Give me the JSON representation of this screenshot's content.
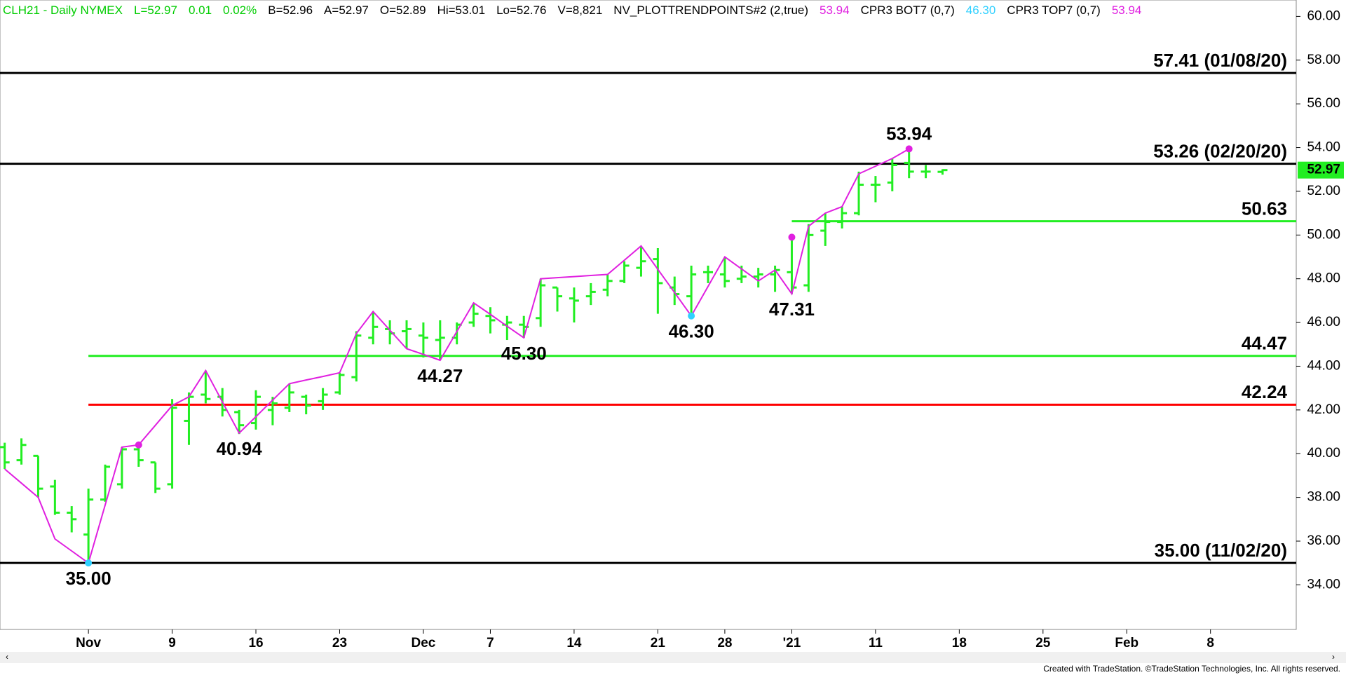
{
  "chart_data": {
    "type": "ohlc",
    "header": [
      {
        "text": "CLH21 - Daily  NYMEX",
        "color": "#00cc00"
      },
      {
        "text": "L=52.97",
        "color": "#00cc00"
      },
      {
        "text": "0.01",
        "color": "#00cc00"
      },
      {
        "text": "0.02%",
        "color": "#00cc00"
      },
      {
        "text": "B=52.96",
        "color": "#000000"
      },
      {
        "text": "A=52.97",
        "color": "#000000"
      },
      {
        "text": "O=52.89",
        "color": "#000000"
      },
      {
        "text": "Hi=53.01",
        "color": "#000000"
      },
      {
        "text": "Lo=52.76",
        "color": "#000000"
      },
      {
        "text": "V=8,821",
        "color": "#000000"
      },
      {
        "text": "NV_PLOTTRENDPOINTS#2 (2,true)",
        "color": "#000000"
      },
      {
        "text": "53.94",
        "color": "#e020e0"
      },
      {
        "text": "CPR3 BOT7 (0,7)",
        "color": "#000000"
      },
      {
        "text": "46.30",
        "color": "#30d0ff"
      },
      {
        "text": "CPR3 TOP7 (0,7)",
        "color": "#000000"
      },
      {
        "text": "53.94",
        "color": "#e020e0"
      }
    ],
    "footer": "Created with TradeStation. ©TradeStation Technologies, Inc. All rights reserved.",
    "categories": [
      null,
      null,
      null,
      null,
      null,
      "Nov",
      null,
      null,
      null,
      null,
      "9",
      null,
      null,
      null,
      null,
      "16",
      null,
      null,
      null,
      null,
      "23",
      null,
      null,
      null,
      null,
      "Dec",
      null,
      null,
      null,
      "7",
      null,
      null,
      null,
      null,
      "14",
      null,
      null,
      null,
      null,
      "21",
      null,
      null,
      null,
      "28",
      null,
      null,
      null,
      "'21",
      null,
      null,
      null,
      null,
      "11",
      null,
      null,
      null,
      null,
      "18",
      null,
      null,
      null,
      null,
      "25",
      null,
      null,
      null,
      null,
      "Feb",
      null,
      null,
      null,
      null,
      "8",
      null,
      null,
      null,
      null
    ],
    "color": "#22ee22",
    "open": [
      40.3,
      39.7,
      39.9,
      38.5,
      37.3,
      36.3,
      37.9,
      38.6,
      40.2,
      39.6,
      38.6,
      41.5,
      42.7,
      42.6,
      41.9,
      41.4,
      42.0,
      42.1,
      42.6,
      42.4,
      42.8,
      43.5,
      45.3,
      45.7,
      45.6,
      45.4,
      45.2,
      45.3,
      46.0,
      46.3,
      45.9,
      45.9,
      46.2,
      47.6,
      47.1,
      47.2,
      47.5,
      47.9,
      48.5,
      48.9,
      47.6,
      47.2,
      48.3,
      48.2,
      48.0,
      48.1,
      48.2,
      48.3,
      47.7,
      50.2,
      50.6,
      51.0,
      52.3,
      52.4,
      53.3,
      52.9,
      52.89,
      null,
      null,
      null,
      null,
      null,
      null,
      null,
      null,
      null,
      null,
      null,
      null,
      null,
      null,
      null,
      null,
      null,
      null,
      null,
      null
    ],
    "high": [
      40.5,
      40.7,
      39.9,
      38.8,
      37.6,
      38.4,
      39.5,
      40.3,
      40.4,
      39.6,
      42.5,
      42.8,
      43.8,
      43.0,
      42.0,
      42.9,
      42.6,
      43.2,
      42.7,
      43.0,
      43.7,
      45.6,
      46.5,
      46.1,
      46.1,
      46.0,
      46.1,
      46.0,
      46.9,
      46.7,
      46.3,
      46.3,
      48.0,
      47.6,
      47.6,
      47.8,
      48.2,
      48.8,
      49.5,
      49.4,
      48.1,
      48.6,
      48.6,
      49.0,
      48.6,
      48.5,
      48.6,
      49.8,
      50.5,
      51.0,
      51.3,
      52.9,
      52.7,
      53.5,
      53.94,
      53.2,
      53.01,
      null,
      null,
      null,
      null,
      null,
      null,
      null,
      null,
      null,
      null,
      null,
      null,
      null,
      null,
      null,
      null,
      null,
      null,
      null,
      null
    ],
    "low": [
      39.3,
      39.5,
      38.0,
      37.2,
      36.4,
      35.0,
      37.8,
      38.4,
      39.4,
      38.2,
      38.4,
      40.4,
      42.3,
      41.7,
      40.9,
      41.1,
      41.3,
      41.9,
      41.8,
      42.0,
      42.7,
      43.3,
      45.0,
      45.0,
      44.8,
      44.4,
      44.27,
      45.0,
      45.8,
      45.5,
      45.2,
      45.3,
      45.8,
      46.5,
      46.0,
      46.8,
      47.2,
      47.8,
      48.1,
      46.4,
      46.8,
      46.3,
      47.8,
      47.6,
      47.8,
      47.6,
      47.4,
      47.31,
      47.4,
      49.5,
      50.3,
      50.9,
      51.5,
      52.0,
      52.6,
      52.6,
      52.76,
      null,
      null,
      null,
      null,
      null,
      null,
      null,
      null,
      null,
      null,
      null,
      null,
      null,
      null,
      null,
      null,
      null,
      null,
      null,
      null
    ],
    "close": [
      39.6,
      40.4,
      38.4,
      37.3,
      37.0,
      37.9,
      39.4,
      40.2,
      39.7,
      38.4,
      42.1,
      42.6,
      42.5,
      42.0,
      41.3,
      42.6,
      42.3,
      42.8,
      42.2,
      42.7,
      43.6,
      45.4,
      45.8,
      45.5,
      45.7,
      45.3,
      45.3,
      45.9,
      46.4,
      46.1,
      46.0,
      45.8,
      47.7,
      47.2,
      47.0,
      47.4,
      47.9,
      48.6,
      48.8,
      47.8,
      47.3,
      48.2,
      48.3,
      47.9,
      48.1,
      48.2,
      48.4,
      47.6,
      50.0,
      50.6,
      51.0,
      52.3,
      52.3,
      53.2,
      52.9,
      52.9,
      52.97,
      null,
      null,
      null,
      null,
      null,
      null,
      null,
      null,
      null,
      null,
      null,
      null,
      null,
      null,
      null,
      null,
      null,
      null,
      null,
      null
    ],
    "trend": {
      "color": "#e020e0",
      "values": [
        39.3,
        38.65,
        38.0,
        36.1,
        35.55,
        35.0,
        37.65,
        40.3,
        40.4,
        41.3,
        42.2,
        42.6,
        43.8,
        42.37,
        40.94,
        41.69,
        42.45,
        43.2,
        43.37,
        43.53,
        43.7,
        45.5,
        46.5,
        45.65,
        44.8,
        44.54,
        44.27,
        45.59,
        46.9,
        46.37,
        45.83,
        45.3,
        48.0,
        48.05,
        48.1,
        48.15,
        48.2,
        48.85,
        49.5,
        48.43,
        47.37,
        46.3,
        47.65,
        49.0,
        48.45,
        47.9,
        48.4,
        47.31,
        50.4,
        51.0,
        51.3,
        52.8,
        53.15,
        53.5,
        53.94,
        null,
        null,
        null,
        null,
        null,
        null,
        null,
        null,
        null,
        null,
        null,
        null,
        null,
        null,
        null,
        null,
        null,
        null,
        null,
        null,
        null,
        null
      ]
    },
    "dots_top": {
      "color": "#e020e0",
      "values": [
        null,
        null,
        null,
        null,
        null,
        null,
        null,
        null,
        40.4,
        null,
        null,
        null,
        null,
        null,
        null,
        null,
        null,
        null,
        null,
        null,
        null,
        null,
        null,
        null,
        null,
        null,
        null,
        null,
        null,
        null,
        null,
        null,
        null,
        null,
        null,
        null,
        null,
        null,
        null,
        null,
        null,
        null,
        null,
        null,
        null,
        null,
        null,
        49.9,
        null,
        null,
        null,
        null,
        null,
        null,
        53.94,
        null,
        null,
        null,
        null,
        null,
        null,
        null,
        null,
        null,
        null,
        null,
        null,
        null,
        null,
        null,
        null,
        null,
        null,
        null,
        null,
        null,
        null
      ]
    },
    "dots_bottom": {
      "color": "#30d0ff",
      "values": [
        null,
        null,
        null,
        null,
        null,
        35.0,
        null,
        null,
        null,
        null,
        null,
        null,
        null,
        null,
        null,
        null,
        null,
        null,
        null,
        null,
        null,
        null,
        null,
        null,
        null,
        null,
        null,
        null,
        null,
        null,
        null,
        null,
        null,
        null,
        null,
        null,
        null,
        null,
        null,
        null,
        null,
        46.3,
        null,
        null,
        null,
        null,
        null,
        null,
        null,
        null,
        null,
        null,
        null,
        null,
        null,
        null,
        null,
        null,
        null,
        null,
        null,
        null,
        null,
        null,
        null,
        null,
        null,
        null,
        null,
        null,
        null,
        null,
        null,
        null,
        null,
        null,
        null
      ]
    },
    "labels_low": {
      "values": [
        null,
        null,
        null,
        null,
        null,
        35,
        null,
        null,
        null,
        null,
        null,
        null,
        null,
        null,
        40.94,
        null,
        null,
        null,
        null,
        null,
        null,
        null,
        null,
        null,
        null,
        null,
        44.27,
        null,
        null,
        null,
        null,
        45.3,
        null,
        null,
        null,
        null,
        null,
        null,
        null,
        null,
        null,
        46.3,
        null,
        null,
        null,
        null,
        null,
        47.31,
        null,
        null,
        null,
        null,
        null,
        null,
        null,
        null,
        null,
        null,
        null,
        null,
        null,
        null,
        null,
        null,
        null,
        null,
        null,
        null,
        null,
        null,
        null,
        null,
        null,
        null,
        null,
        null,
        null
      ],
      "value_labels": [
        null,
        null,
        null,
        null,
        null,
        "35.00",
        null,
        null,
        null,
        null,
        null,
        null,
        null,
        null,
        "40.94",
        null,
        null,
        null,
        null,
        null,
        null,
        null,
        null,
        null,
        null,
        null,
        "44.27",
        null,
        null,
        null,
        null,
        "45.30",
        null,
        null,
        null,
        null,
        null,
        null,
        null,
        null,
        null,
        "46.30",
        null,
        null,
        null,
        null,
        null,
        "47.31",
        null,
        null,
        null,
        null,
        null,
        null,
        null,
        null,
        null,
        null,
        null,
        null,
        null,
        null,
        null,
        null,
        null,
        null,
        null,
        null,
        null,
        null,
        null,
        null,
        null,
        null,
        null,
        null,
        null
      ]
    },
    "labels_high": {
      "values": [
        null,
        null,
        null,
        null,
        null,
        null,
        null,
        null,
        null,
        null,
        null,
        null,
        null,
        null,
        null,
        null,
        null,
        null,
        null,
        null,
        null,
        null,
        null,
        null,
        null,
        null,
        null,
        null,
        null,
        null,
        null,
        null,
        null,
        null,
        null,
        null,
        null,
        null,
        null,
        null,
        null,
        null,
        null,
        null,
        null,
        null,
        null,
        null,
        null,
        null,
        null,
        null,
        null,
        null,
        53.94,
        null,
        null,
        null,
        null,
        null,
        null,
        null,
        null,
        null,
        null,
        null,
        null,
        null,
        null,
        null,
        null,
        null,
        null,
        null,
        null,
        null,
        null
      ],
      "value_labels": [
        null,
        null,
        null,
        null,
        null,
        null,
        null,
        null,
        null,
        null,
        null,
        null,
        null,
        null,
        null,
        null,
        null,
        null,
        null,
        null,
        null,
        null,
        null,
        null,
        null,
        null,
        null,
        null,
        null,
        null,
        null,
        null,
        null,
        null,
        null,
        null,
        null,
        null,
        null,
        null,
        null,
        null,
        null,
        null,
        null,
        null,
        null,
        null,
        null,
        null,
        null,
        null,
        null,
        null,
        "53.94",
        null,
        null,
        null,
        null,
        null,
        null,
        null,
        null,
        null,
        null,
        null,
        null,
        null,
        null,
        null,
        null,
        null,
        null,
        null,
        null,
        null,
        null
      ]
    },
    "levels": [
      {
        "value": 57.41,
        "label": "57.41 (01/08/20)",
        "color": "#000000"
      },
      {
        "value": 53.26,
        "label": "53.26 (02/20/20)",
        "color": "#000000"
      },
      {
        "value": 50.63,
        "label": "50.63",
        "color": "#22ee22",
        "start": "'21"
      },
      {
        "value": 44.47,
        "label": "44.47",
        "color": "#22ee22",
        "start": "Nov"
      },
      {
        "value": 42.24,
        "label": "42.24",
        "color": "#ff0000",
        "start": "Nov"
      },
      {
        "value": 35.0,
        "label": "35.00 (11/02/20)",
        "color": "#000000"
      }
    ],
    "last": {
      "value": 52.97,
      "label": "52.97",
      "color": "#22ee22"
    },
    "ylim": [
      31.96,
      60.75
    ],
    "yticks": [
      {
        "value": 34,
        "label": "34.00"
      },
      {
        "value": 36,
        "label": "36.00"
      },
      {
        "value": 38,
        "label": "38.00"
      },
      {
        "value": 40,
        "label": "40.00"
      },
      {
        "value": 42,
        "label": "42.00"
      },
      {
        "value": 44,
        "label": "44.00"
      },
      {
        "value": 46,
        "label": "46.00"
      },
      {
        "value": 48,
        "label": "48.00"
      },
      {
        "value": 50,
        "label": "50.00"
      },
      {
        "value": 52,
        "label": "52.00"
      },
      {
        "value": 54,
        "label": "54.00"
      },
      {
        "value": 56,
        "label": "56.00"
      },
      {
        "value": 58,
        "label": "58.00"
      },
      {
        "value": 60,
        "label": "60.00"
      }
    ]
  }
}
